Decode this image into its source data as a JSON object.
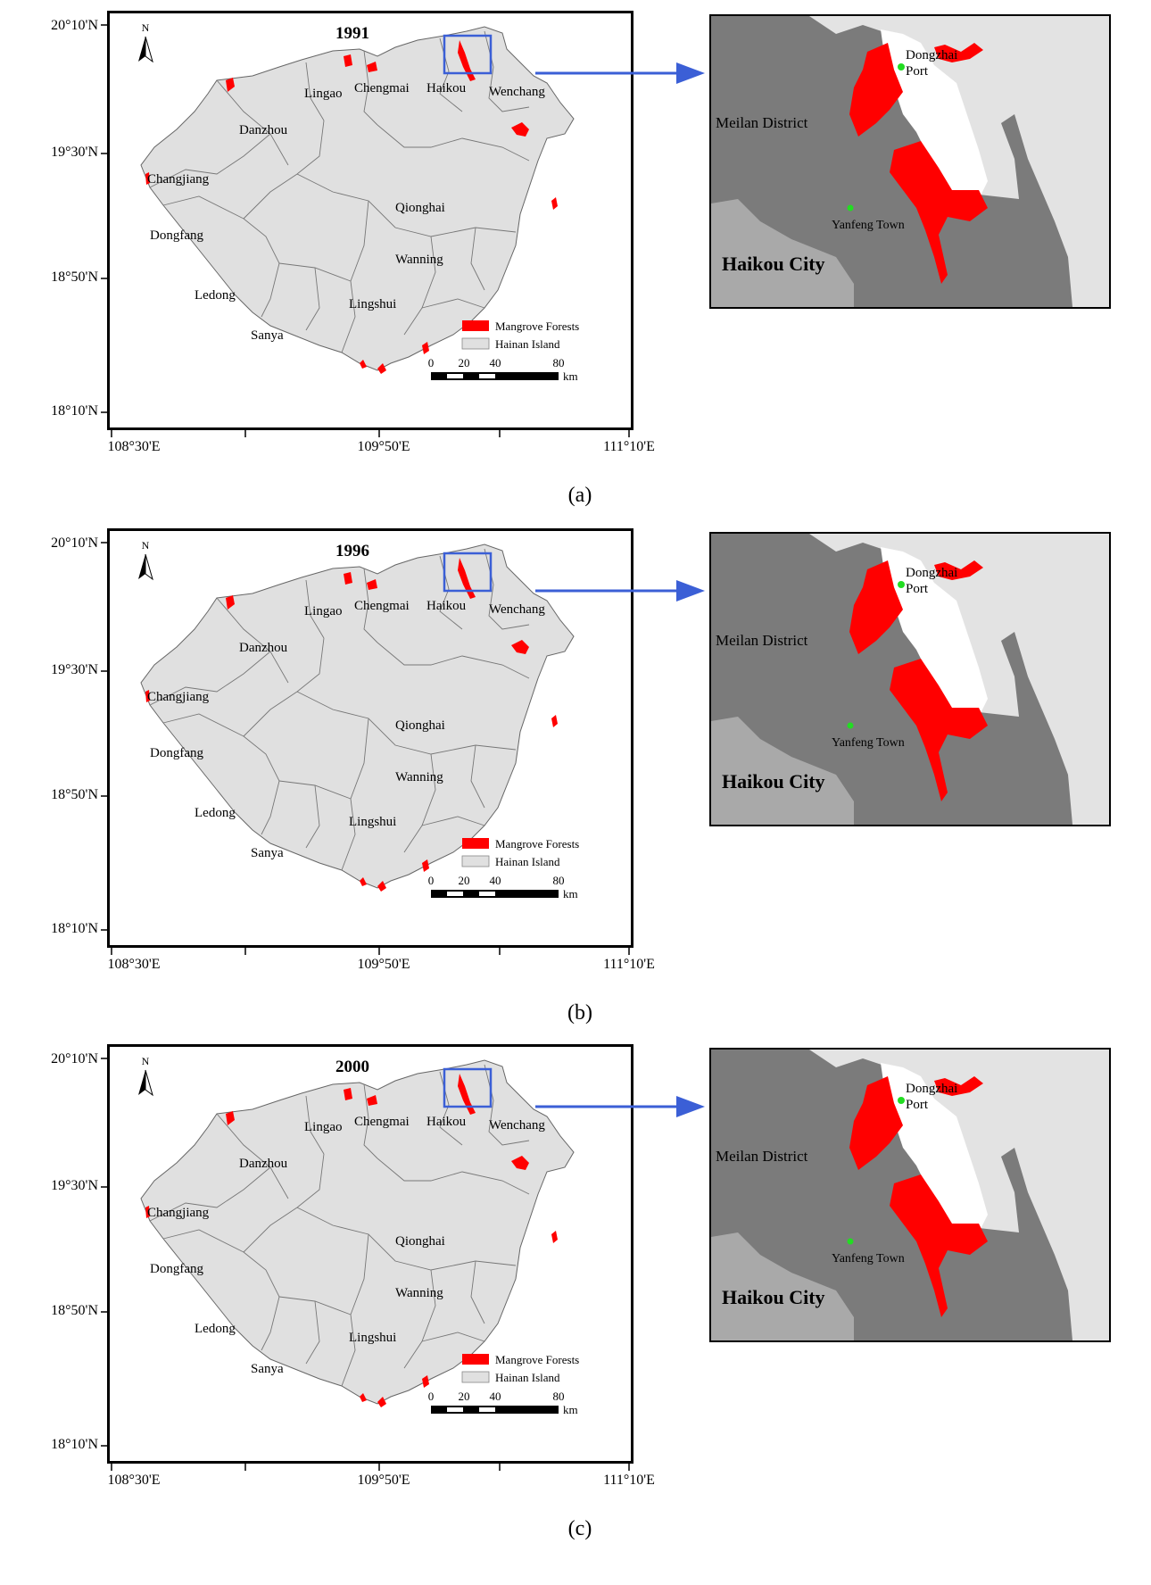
{
  "figure": {
    "lat_labels": [
      "20°10'N",
      "19°30'N",
      "18°50'N",
      "18°10'N"
    ],
    "lon_labels": [
      "108°30'E",
      "109°50'E",
      "111°10'E"
    ],
    "north_symbol": "N",
    "cities": [
      "Lingao",
      "Chengmai",
      "Haikou",
      "Wenchang",
      "Danzhou",
      "Changjiang",
      "Qionghai",
      "Dongfang",
      "Wanning",
      "Ledong",
      "Lingshui",
      "Sanya"
    ],
    "legend": {
      "mangrove": "Mangrove Forests",
      "island": "Hainan Island"
    },
    "scale": {
      "ticks": [
        "0",
        "20",
        "40",
        "80"
      ],
      "unit": "km"
    },
    "inset": {
      "meilan": "Meilan District",
      "dongzhai_1": "Dongzhai",
      "dongzhai_2": "Port",
      "yanfeng": "Yanfeng Town",
      "haikou_city": "Haikou City"
    },
    "colors": {
      "mangrove": "#ff0000",
      "island": "#e0e0e0",
      "district": "#7b7b7b",
      "haikou_city_fill": "#a9a9a9",
      "water": "#ffffff",
      "sea_inset": "#e3e3e3",
      "highlight_box": "#3b5fd6",
      "point": "#22dd22"
    }
  },
  "panels": [
    {
      "year": "1991",
      "caption": "(a)"
    },
    {
      "year": "1996",
      "caption": "(b)"
    },
    {
      "year": "2000",
      "caption": "(c)"
    }
  ]
}
